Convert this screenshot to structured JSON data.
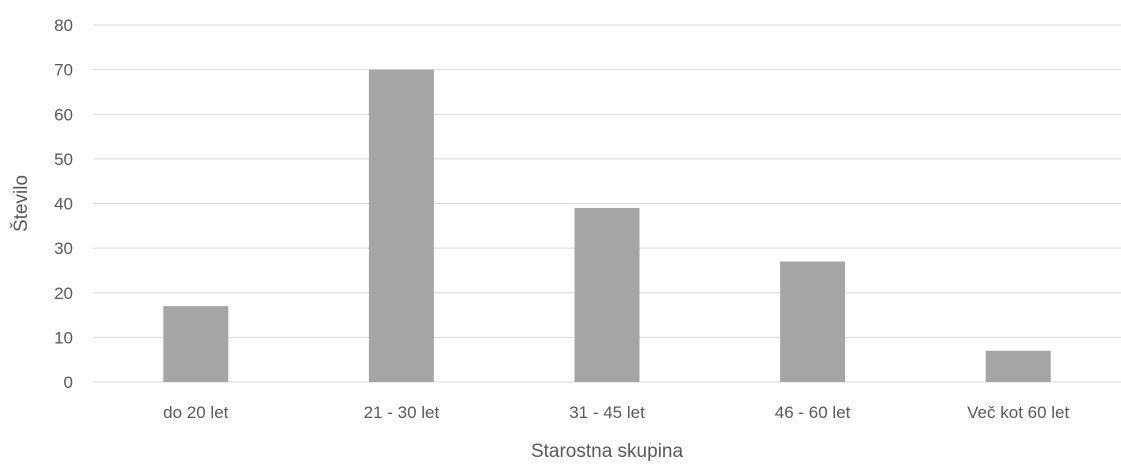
{
  "chart_data": {
    "type": "bar",
    "title": "",
    "xlabel": "Starostna skupina",
    "ylabel": "Število",
    "categories": [
      "do 20 let",
      "21 - 30 let",
      "31 - 45 let",
      "46 - 60 let",
      "Več kot 60 let"
    ],
    "values": [
      17,
      70,
      39,
      27,
      7
    ],
    "ylim": [
      0,
      80
    ],
    "yticks": [
      0,
      10,
      20,
      30,
      40,
      50,
      60,
      70,
      80
    ],
    "grid": true,
    "legend": "none",
    "bar_color": "#a5a5a5",
    "grid_color": "#d9d9d9",
    "text_color": "#595959"
  }
}
